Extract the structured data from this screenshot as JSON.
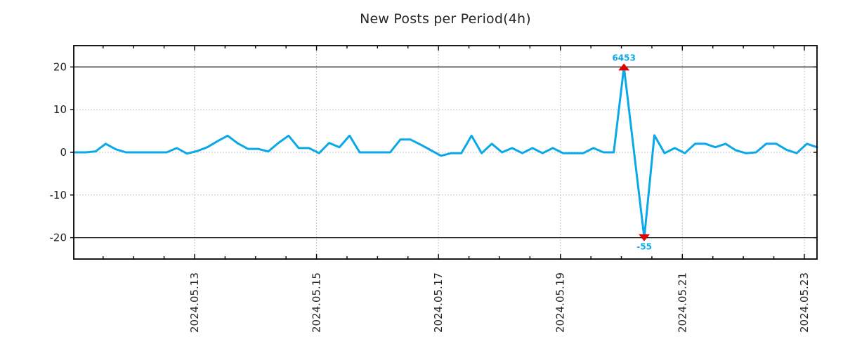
{
  "figure": {
    "background": "#ffffff"
  },
  "chart_data": {
    "type": "line",
    "title": "New Posts per Period(4h)",
    "period": "4h",
    "x_tick_labels": [
      "2024.05.13",
      "2024.05.15",
      "2024.05.17",
      "2024.05.19",
      "2024.05.21",
      "2024.05.23"
    ],
    "y_ticks": [
      -20,
      -10,
      0,
      10,
      20
    ],
    "ylim": [
      -25,
      25
    ],
    "display_clip": [
      -20,
      20
    ],
    "grid": true,
    "legend_position": "none",
    "line_color": "#0aa8e8",
    "marker_color": "#e00000",
    "gridline_color": "#b3b3b3",
    "axis_color": "#000000",
    "tick_label_color": "#262626",
    "annotations": [
      {
        "text": "6453",
        "type": "max",
        "marker": "triangle-up"
      },
      {
        "text": "-55",
        "type": "min",
        "marker": "triangle-down"
      }
    ],
    "values": [
      0,
      0,
      0.2,
      2,
      0.7,
      0,
      0,
      0,
      0,
      0,
      1,
      -0.3,
      0.3,
      1.2,
      2.6,
      3.9,
      2.1,
      0.8,
      0.8,
      0.2,
      2.2,
      3.9,
      1,
      1,
      -0.2,
      2.2,
      1.2,
      3.9,
      0,
      0,
      0,
      0,
      3,
      3,
      1.8,
      0.5,
      -0.8,
      -0.2,
      -0.2,
      3.9,
      -0.2,
      2,
      0,
      1,
      -0.2,
      1,
      -0.2,
      1,
      -0.2,
      -0.2,
      -0.2,
      1,
      0,
      0,
      6453,
      0,
      -55,
      4,
      -0.2,
      1,
      -0.2,
      2,
      2,
      1.2,
      2,
      0.5,
      -0.2,
      0,
      2,
      2,
      0.6,
      -0.2,
      2,
      1.2
    ]
  }
}
